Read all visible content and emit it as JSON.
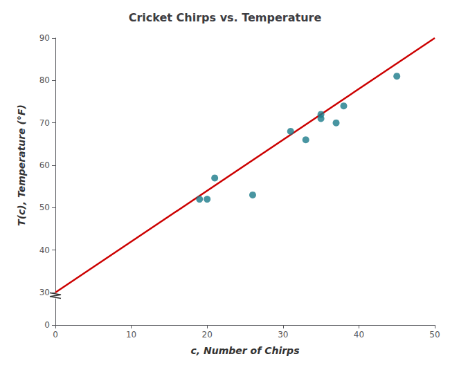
{
  "chart_data": [
    {
      "type": "scatter",
      "title": "Cricket Chirps vs. Temperature",
      "ylabel": "T(c), Temperature (°F)",
      "series": [
        {
          "type": "line",
          "color": "#cc0000",
          "x": [
            0,
            50
          ],
          "values": [
            30,
            90
          ]
        },
        {
          "type": "scatter",
          "color": "#1a7a8a",
          "x": [
            19,
            20,
            21,
            26,
            31,
            33,
            35,
            35,
            37,
            38,
            45
          ],
          "values": [
            52,
            52,
            57,
            53,
            68,
            66,
            72,
            71,
            70,
            74,
            81
          ]
        }
      ],
      "xlim": [
        0,
        50
      ],
      "xticks": [
        0,
        10,
        20,
        30,
        40,
        50
      ],
      "ylim": [
        30,
        90
      ],
      "yticks": [
        30,
        40,
        50,
        60,
        70,
        80,
        90
      ],
      "tick_labels": "y",
      "grid": false
    },
    {
      "type": "scatter",
      "xlabel": "c, Number of Chirps",
      "xlim": [
        0,
        50
      ],
      "xticks": [
        0,
        10,
        20,
        30,
        40,
        50
      ],
      "ylim": [
        0,
        4
      ],
      "yticks": [
        0
      ],
      "grid": false
    }
  ]
}
